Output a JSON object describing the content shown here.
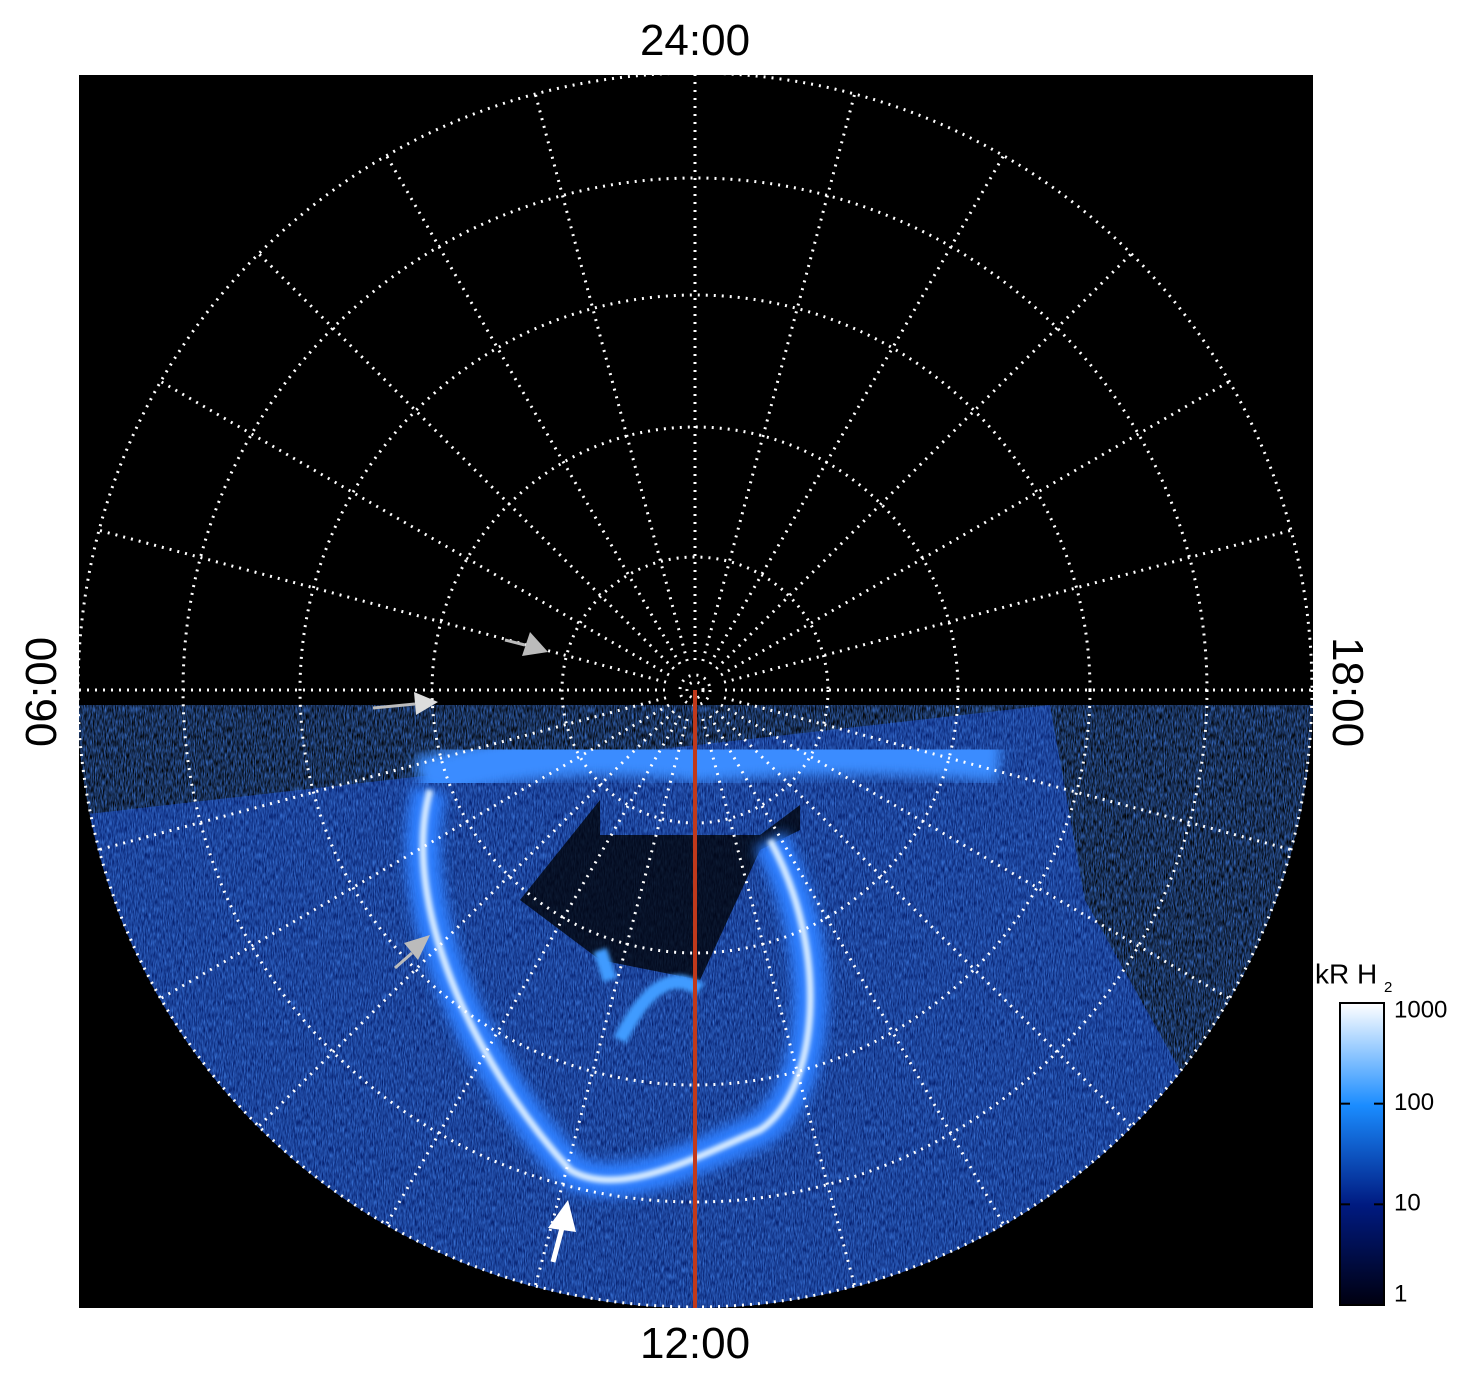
{
  "labels": {
    "top": "24:00",
    "bottom": "12:00",
    "left": "06:00",
    "right": "18:00"
  },
  "colorbar": {
    "title": "kR H",
    "title_subscript": "2",
    "scale": "log",
    "lim": [
      1,
      1000
    ],
    "ticks": [
      1,
      10,
      100,
      1000
    ]
  }
}
